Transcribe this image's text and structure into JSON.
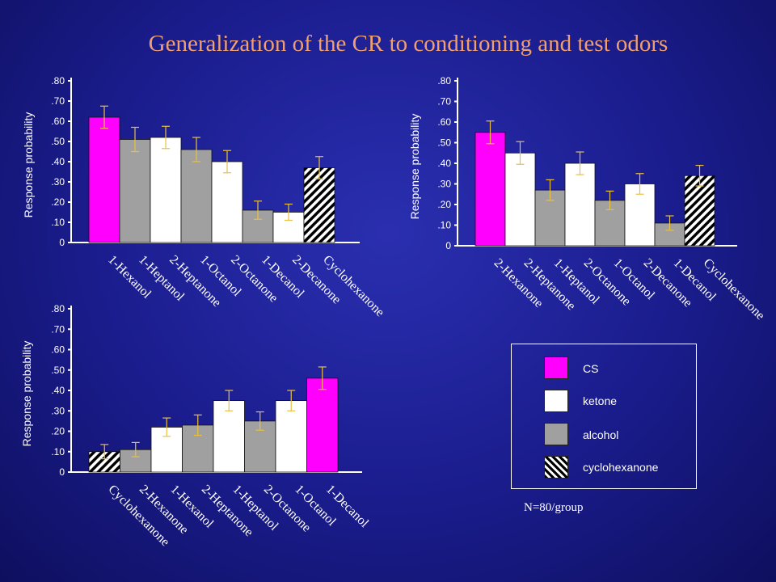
{
  "title": "Generalization of the CR to conditioning and test odors",
  "colors": {
    "CS": "#ff00ff",
    "ketone": "#ffffff",
    "alcohol": "#a0a0a0",
    "cyclohexanone": "hatch",
    "error_bar": "#e8c040"
  },
  "chart_data": [
    {
      "type": "bar",
      "title": "",
      "xlabel": "",
      "ylabel": "Response probability",
      "ylim": [
        0,
        0.8
      ],
      "yticks": [
        0,
        0.1,
        0.2,
        0.3,
        0.4,
        0.5,
        0.6,
        0.7,
        0.8
      ],
      "ytick_labels": [
        "0",
        ".10",
        ".20",
        ".30",
        ".40",
        ".50",
        ".60",
        ".70",
        ".80"
      ],
      "categories": [
        "1-Hexanol",
        "1-Heptanol",
        "2-Heptanone",
        "1-Octanol",
        "2-Octanone",
        "1-Decanol",
        "2-Decanone",
        "Cyclohexanone"
      ],
      "values": [
        0.62,
        0.51,
        0.52,
        0.46,
        0.4,
        0.16,
        0.15,
        0.37
      ],
      "errors": [
        0.055,
        0.06,
        0.055,
        0.06,
        0.055,
        0.045,
        0.04,
        0.055
      ],
      "groups": [
        "CS",
        "alcohol",
        "ketone",
        "alcohol",
        "ketone",
        "alcohol",
        "ketone",
        "cyclohexanone"
      ]
    },
    {
      "type": "bar",
      "title": "",
      "xlabel": "",
      "ylabel": "Response probability",
      "ylim": [
        0,
        0.8
      ],
      "yticks": [
        0,
        0.1,
        0.2,
        0.3,
        0.4,
        0.5,
        0.6,
        0.7,
        0.8
      ],
      "ytick_labels": [
        "0",
        ".10",
        ".20",
        ".30",
        ".40",
        ".50",
        ".60",
        ".70",
        ".80"
      ],
      "categories": [
        "2-Hexanone",
        "2-Heptanone",
        "1-Heptanol",
        "2-Octanone",
        "1-Octanol",
        "2-Decanone",
        "1-Decanol",
        "Cyclohexanone"
      ],
      "values": [
        0.55,
        0.45,
        0.27,
        0.4,
        0.22,
        0.3,
        0.11,
        0.34
      ],
      "errors": [
        0.055,
        0.055,
        0.05,
        0.055,
        0.045,
        0.05,
        0.035,
        0.05
      ],
      "groups": [
        "CS",
        "ketone",
        "alcohol",
        "ketone",
        "alcohol",
        "ketone",
        "alcohol",
        "cyclohexanone"
      ]
    },
    {
      "type": "bar",
      "title": "",
      "xlabel": "",
      "ylabel": "Response probability",
      "ylim": [
        0,
        0.8
      ],
      "yticks": [
        0,
        0.1,
        0.2,
        0.3,
        0.4,
        0.5,
        0.6,
        0.7,
        0.8
      ],
      "ytick_labels": [
        "0",
        ".10",
        ".20",
        ".30",
        ".40",
        ".50",
        ".60",
        ".70",
        ".80"
      ],
      "categories": [
        "Cyclohexanone",
        "2-Hexanone",
        "1-Hexanol",
        "2-Heptanone",
        "1-Heptanol",
        "2-Octanone",
        "1-Octanol",
        "1-Decanol"
      ],
      "values": [
        0.1,
        0.11,
        0.22,
        0.23,
        0.35,
        0.25,
        0.35,
        0.46
      ],
      "errors": [
        0.035,
        0.035,
        0.045,
        0.05,
        0.05,
        0.045,
        0.05,
        0.055
      ],
      "groups": [
        "cyclohexanone",
        "alcohol",
        "ketone",
        "alcohol",
        "ketone",
        "alcohol",
        "ketone",
        "CS"
      ]
    }
  ],
  "legend": {
    "items": [
      {
        "key": "CS",
        "label": "CS"
      },
      {
        "key": "ketone",
        "label": "ketone"
      },
      {
        "key": "alcohol",
        "label": "alcohol"
      },
      {
        "key": "cyclohexanone",
        "label": "cyclohexanone"
      }
    ]
  },
  "note": "N=80/group"
}
